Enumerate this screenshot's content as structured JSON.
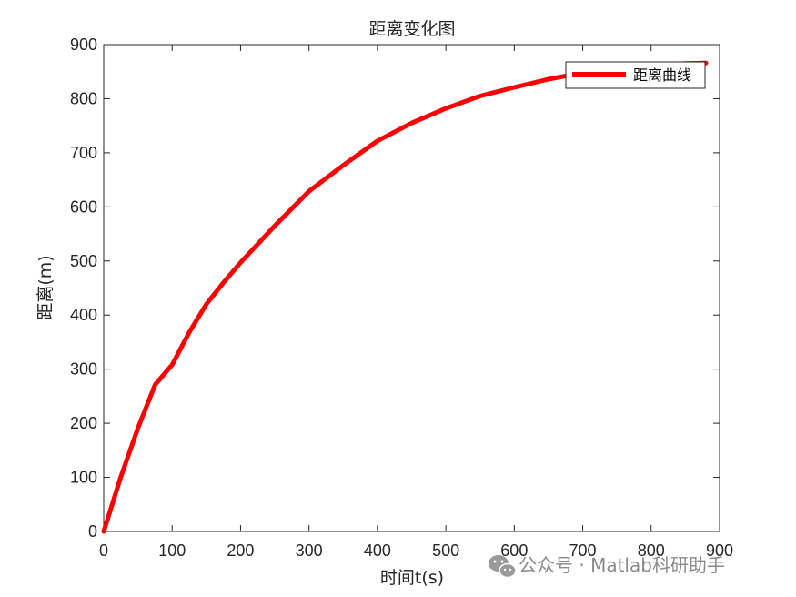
{
  "chart_data": {
    "type": "line",
    "title": "距离变化图",
    "xlabel": "时间t(s)",
    "ylabel": "距离(m)",
    "xlim": [
      0,
      900
    ],
    "ylim": [
      0,
      900
    ],
    "xticks": [
      0,
      100,
      200,
      300,
      400,
      500,
      600,
      700,
      800,
      900
    ],
    "yticks": [
      0,
      100,
      200,
      300,
      400,
      500,
      600,
      700,
      800,
      900
    ],
    "grid": false,
    "legend_position": "top-right",
    "series": [
      {
        "name": "距离曲线",
        "color": "#ff0000",
        "x": [
          0,
          25,
          50,
          75,
          100,
          125,
          150,
          175,
          200,
          250,
          300,
          350,
          400,
          450,
          500,
          550,
          600,
          650,
          700,
          750,
          800,
          850,
          880
        ],
        "y": [
          0,
          101,
          191,
          271,
          308,
          368,
          420,
          460,
          497,
          565,
          629,
          677,
          722,
          755,
          782,
          805,
          821,
          836,
          848,
          856,
          862,
          865,
          866
        ]
      }
    ]
  },
  "watermark": {
    "icon": "wechat-icon",
    "text": "公众号 · Matlab科研助手"
  }
}
